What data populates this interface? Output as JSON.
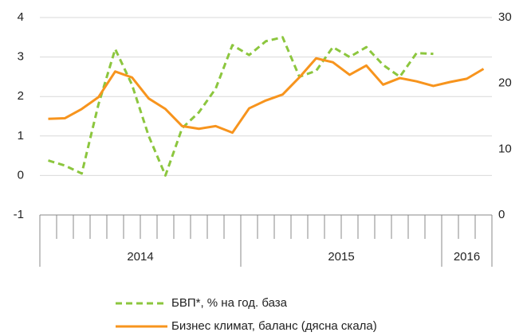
{
  "chart_data": {
    "type": "line",
    "categories": [
      null,
      null,
      null,
      null,
      null,
      null,
      null,
      null,
      null,
      null,
      null,
      null,
      null,
      null,
      null,
      null,
      null,
      null,
      null,
      null,
      null,
      null,
      null,
      null,
      null,
      null,
      null
    ],
    "year_groups": [
      {
        "label": "2014",
        "count": 12
      },
      {
        "label": "2015",
        "count": 12
      },
      {
        "label": "2016",
        "count": 3
      }
    ],
    "series": [
      {
        "name": "БВП*, % на год. база",
        "color": "#8cc63e",
        "dash": true,
        "values": [
          0.38,
          0.25,
          0.05,
          1.8,
          3.2,
          2.3,
          1.0,
          0.0,
          1.2,
          1.6,
          2.2,
          3.3,
          3.05,
          3.4,
          3.5,
          2.5,
          2.65,
          3.25,
          3.0,
          3.25,
          2.8,
          2.5,
          3.1,
          3.08,
          null,
          null,
          null
        ]
      },
      {
        "name": "Бизнес климат, баланс (дясна скала)",
        "color": "#f7941d",
        "axis": "y2",
        "values": [
          14.6,
          14.7,
          16.1,
          17.9,
          21.8,
          20.9,
          17.7,
          16.1,
          13.5,
          13.1,
          13.5,
          12.5,
          16.2,
          17.4,
          18.3,
          20.9,
          23.8,
          23.2,
          21.3,
          22.7,
          19.8,
          20.8,
          20.3,
          19.6,
          20.2,
          20.7,
          22.2
        ]
      }
    ],
    "ylim": [
      -1,
      4
    ],
    "yticks": [
      -1,
      0,
      1,
      2,
      3,
      4
    ],
    "y2lim": [
      0,
      30
    ],
    "y2ticks": [
      0,
      10,
      20,
      30
    ],
    "grid": true
  }
}
